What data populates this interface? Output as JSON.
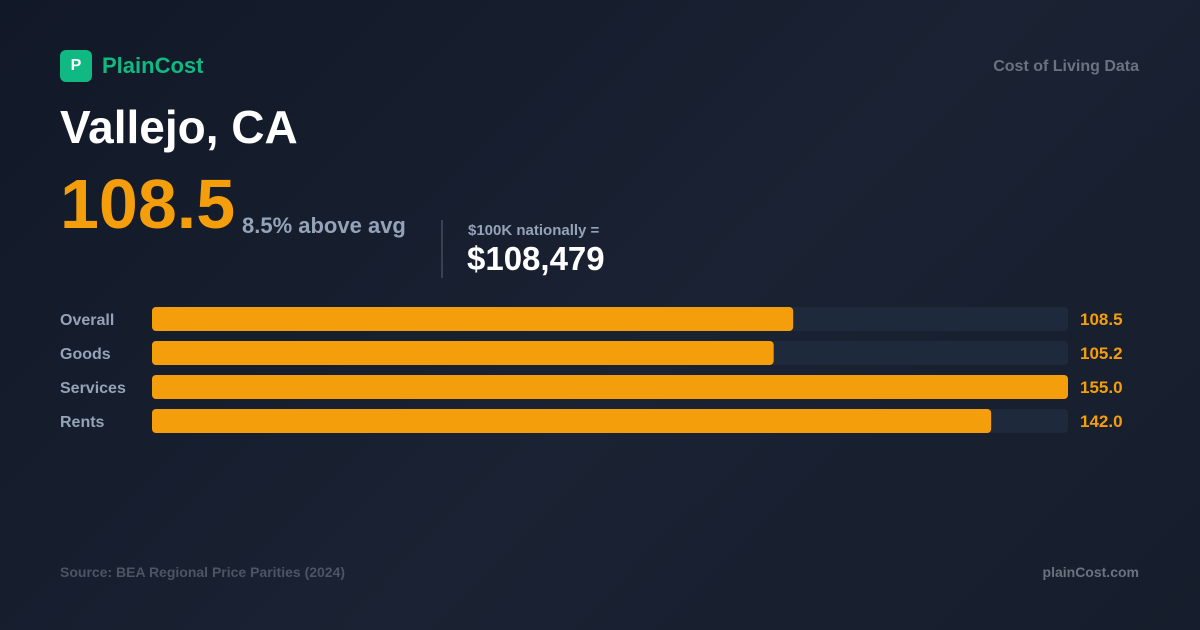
{
  "brand": {
    "logo_letter": "P",
    "name": "PlainCost",
    "tagline": "Cost of Living Data"
  },
  "city": "Vallejo, CA",
  "index": {
    "value": "108.5",
    "comparison": "8.5% above avg"
  },
  "equivalent": {
    "label": "$100K nationally =",
    "value": "$108,479"
  },
  "colors": {
    "accent": "#f59e0b",
    "brand": "#10b981",
    "track": "#1e293b"
  },
  "chart_data": {
    "type": "bar",
    "orientation": "horizontal",
    "categories": [
      "Overall",
      "Goods",
      "Services",
      "Rents"
    ],
    "values": [
      108.5,
      105.2,
      155.0,
      142.0
    ],
    "value_labels": [
      "108.5",
      "105.2",
      "155.0",
      "142.0"
    ],
    "xlim": [
      0,
      155.0
    ]
  },
  "footer": {
    "source": "Source: BEA Regional Price Parities (2024)",
    "site": "plainCost.com"
  }
}
